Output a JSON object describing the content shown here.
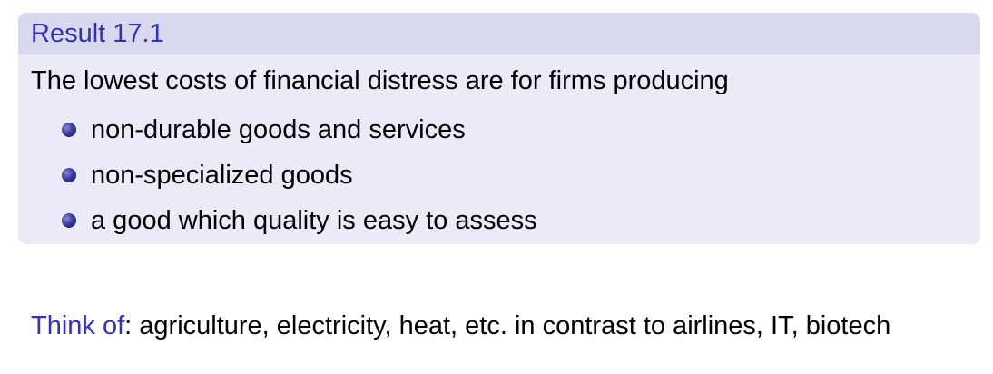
{
  "result": {
    "title": "Result 17.1",
    "intro": "The lowest costs of financial distress are for firms producing",
    "bullets": [
      "non-durable goods and services",
      "non-specialized goods",
      "a good which quality is easy to assess"
    ]
  },
  "footer": {
    "lead": "Think of",
    "text": ": agriculture, electricity, heat, etc. in contrast to airlines, IT, biotech"
  },
  "colors": {
    "accent": "#3333b2",
    "block_header_bg": "#d8d8ef",
    "block_body_bg": "#ebebf7"
  }
}
